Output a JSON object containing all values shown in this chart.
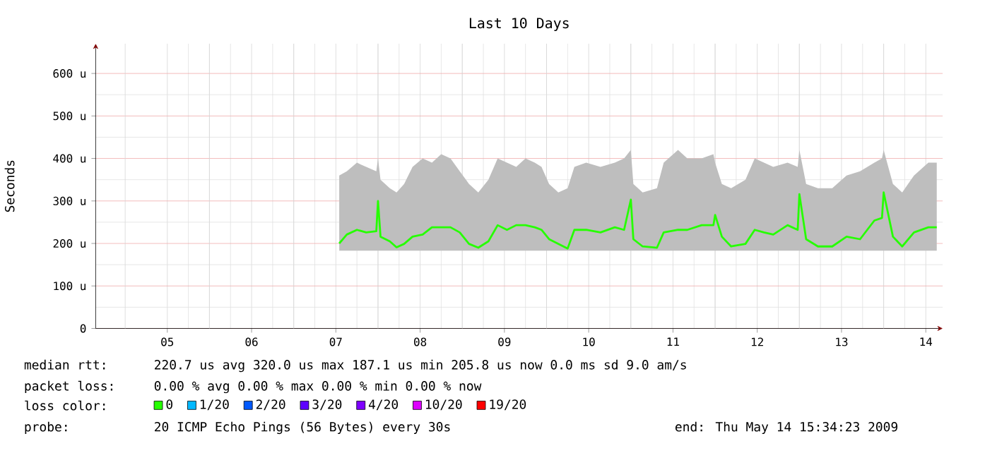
{
  "chart_data": {
    "type": "line",
    "title": "Last 10 Days",
    "ylabel": "Seconds",
    "xlim": [
      4.65,
      14.7
    ],
    "ylim": [
      0,
      670
    ],
    "xticks": [
      {
        "value": 5.5,
        "label": "05"
      },
      {
        "value": 6.5,
        "label": "06"
      },
      {
        "value": 7.5,
        "label": "07"
      },
      {
        "value": 8.5,
        "label": "08"
      },
      {
        "value": 9.5,
        "label": "09"
      },
      {
        "value": 10.5,
        "label": "10"
      },
      {
        "value": 11.5,
        "label": "11"
      },
      {
        "value": 12.5,
        "label": "12"
      },
      {
        "value": 13.5,
        "label": "13"
      },
      {
        "value": 14.5,
        "label": "14"
      },
      {
        "value": 5,
        "label": null
      },
      {
        "value": 6,
        "label": null
      },
      {
        "value": 7,
        "label": null
      },
      {
        "value": 8,
        "label": null
      },
      {
        "value": 9,
        "label": null
      },
      {
        "value": 10,
        "label": null
      },
      {
        "value": 11,
        "label": null
      },
      {
        "value": 12,
        "label": null
      },
      {
        "value": 13,
        "label": null
      },
      {
        "value": 14,
        "label": null
      }
    ],
    "yticks": [
      0,
      {
        "value": 100,
        "label": "100 u"
      },
      {
        "value": 200,
        "label": "200 u"
      },
      {
        "value": 300,
        "label": "300 u"
      },
      {
        "value": 400,
        "label": "400 u"
      },
      {
        "value": 500,
        "label": "500 u"
      },
      {
        "value": 600,
        "label": "600 u"
      }
    ],
    "grid": true,
    "legend": "bottom",
    "marker": "none",
    "line_style": "solid",
    "series": [
      {
        "name": "0",
        "color": "#26ff00",
        "x": [
          7.54,
          7.63,
          7.75,
          7.86,
          7.98,
          8.0,
          8.03,
          8.14,
          8.22,
          8.31,
          8.41,
          8.53,
          8.64,
          8.75,
          8.86,
          8.97,
          9.08,
          9.19,
          9.31,
          9.42,
          9.53,
          9.64,
          9.75,
          9.86,
          9.94,
          10.03,
          10.14,
          10.25,
          10.33,
          10.47,
          10.64,
          10.81,
          10.92,
          11.0,
          11.03,
          11.14,
          11.31,
          11.39,
          11.56,
          11.67,
          11.84,
          11.98,
          12.0,
          12.08,
          12.19,
          12.36,
          12.47,
          12.58,
          12.69,
          12.86,
          12.98,
          13.0,
          13.08,
          13.22,
          13.39,
          13.56,
          13.72,
          13.89,
          13.98,
          14.0,
          14.11,
          14.22,
          14.36,
          14.53,
          14.63
        ],
        "values": [
          200,
          221,
          232,
          226,
          229,
          300,
          216,
          205,
          191,
          199,
          216,
          221,
          238,
          238,
          238,
          226,
          199,
          190,
          205,
          243,
          232,
          243,
          243,
          238,
          232,
          210,
          199,
          188,
          232,
          232,
          226,
          238,
          232,
          303,
          210,
          193,
          190,
          226,
          232,
          232,
          243,
          243,
          267,
          216,
          193,
          199,
          232,
          226,
          221,
          243,
          232,
          316,
          210,
          193,
          193,
          216,
          210,
          254,
          260,
          320,
          216,
          193,
          226,
          238,
          238
        ],
        "lower": [
          183,
          183,
          183,
          183,
          183,
          183,
          183,
          183,
          183,
          183,
          183,
          183,
          183,
          183,
          183,
          183,
          183,
          183,
          183,
          183,
          183,
          183,
          183,
          183,
          183,
          183,
          183,
          183,
          183,
          183,
          183,
          183,
          183,
          183,
          183,
          183,
          183,
          183,
          183,
          183,
          183,
          183,
          183,
          183,
          183,
          183,
          183,
          183,
          183,
          183,
          183,
          183,
          183,
          183,
          183,
          183,
          183,
          183,
          183,
          183,
          183,
          183,
          183,
          183,
          183
        ],
        "upper": [
          360,
          370,
          390,
          380,
          370,
          400,
          350,
          330,
          320,
          340,
          380,
          400,
          390,
          410,
          400,
          370,
          340,
          320,
          350,
          400,
          390,
          380,
          400,
          390,
          380,
          340,
          320,
          330,
          380,
          390,
          380,
          390,
          400,
          420,
          340,
          320,
          330,
          390,
          420,
          400,
          400,
          410,
          390,
          340,
          330,
          350,
          400,
          390,
          380,
          390,
          380,
          420,
          340,
          330,
          330,
          360,
          370,
          390,
          400,
          420,
          340,
          320,
          360,
          390,
          390
        ]
      },
      {
        "name": "1/20",
        "color": "#00b8ff"
      },
      {
        "name": "2/20",
        "color": "#0059ff"
      },
      {
        "name": "3/20",
        "color": "#5e00ff"
      },
      {
        "name": "4/20",
        "color": "#7e00ff"
      },
      {
        "name": "10/20",
        "color": "#dd00ff"
      },
      {
        "name": "19/20",
        "color": "#ff0000"
      }
    ],
    "annotations": [
      "median rtt:",
      "220.7 us avg   320.0 us max   187.1 us min   205.8 us now   0.0 ms sd   9.0   am/s",
      "packet loss:",
      "0.00 % avg   0.00 % max   0.00 % min   0.00 % now",
      "loss color:",
      "probe:",
      "20 ICMP Echo Pings (56 Bytes) every 30s",
      "end: Thu May 14 15:34:23 2009"
    ]
  }
}
